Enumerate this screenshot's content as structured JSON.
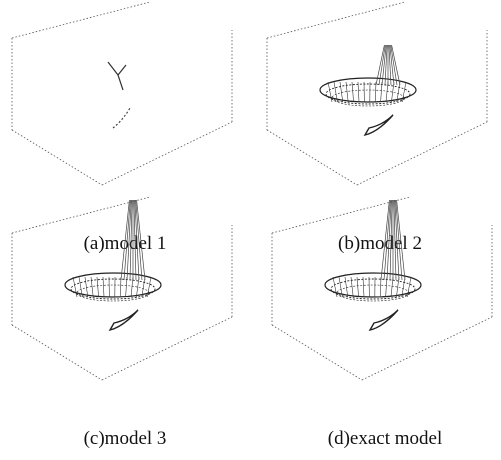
{
  "panels": [
    {
      "caption": "(a)model 1"
    },
    {
      "caption": "(b)model 2"
    },
    {
      "caption": "(c)model 3"
    },
    {
      "caption": "(d)exact model"
    }
  ]
}
